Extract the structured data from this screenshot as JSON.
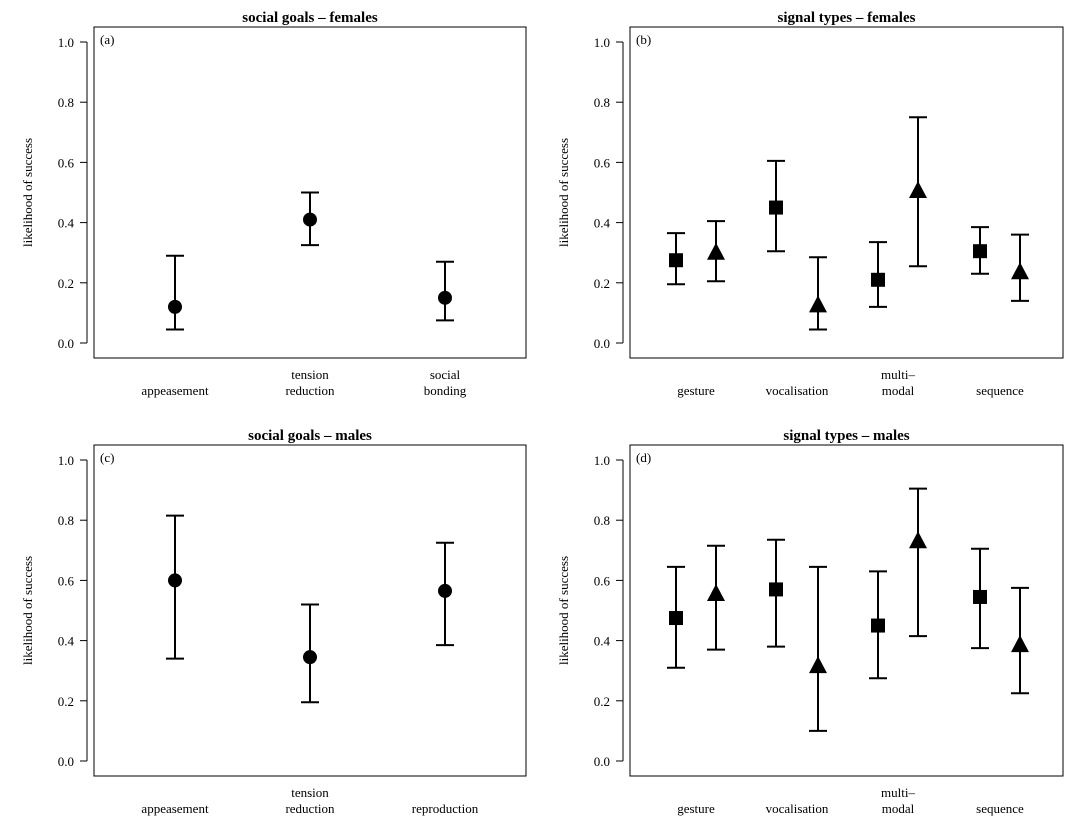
{
  "chart_data": [
    {
      "type": "scatter",
      "panel_label": "(a)",
      "title": "social goals – females",
      "xlabel": "",
      "ylabel": "likelihood of success",
      "ylim": [
        0,
        1
      ],
      "yticks": [
        "0.0",
        "0.2",
        "0.4",
        "0.6",
        "0.8",
        "1.0"
      ],
      "categories": [
        [
          "appeasement"
        ],
        [
          "tension",
          "reduction"
        ],
        [
          "social",
          "bonding"
        ]
      ],
      "series": [
        {
          "marker": "circle",
          "values": [
            0.12,
            0.41,
            0.15
          ],
          "lower": [
            0.045,
            0.325,
            0.075
          ],
          "upper": [
            0.29,
            0.5,
            0.27
          ]
        }
      ]
    },
    {
      "type": "scatter",
      "panel_label": "(b)",
      "title": "signal types – females",
      "xlabel": "",
      "ylabel": "likelihood of success",
      "ylim": [
        0,
        1
      ],
      "yticks": [
        "0.0",
        "0.2",
        "0.4",
        "0.6",
        "0.8",
        "1.0"
      ],
      "categories": [
        [
          "gesture"
        ],
        [
          "vocalisation"
        ],
        [
          "multi–",
          "modal"
        ],
        [
          "sequence"
        ]
      ],
      "series": [
        {
          "marker": "square",
          "values": [
            0.275,
            0.45,
            0.21,
            0.305
          ],
          "lower": [
            0.195,
            0.305,
            0.12,
            0.23
          ],
          "upper": [
            0.365,
            0.605,
            0.335,
            0.385
          ]
        },
        {
          "marker": "triangle",
          "values": [
            0.3,
            0.125,
            0.505,
            0.235
          ],
          "lower": [
            0.205,
            0.045,
            0.255,
            0.14
          ],
          "upper": [
            0.405,
            0.285,
            0.75,
            0.36
          ]
        }
      ]
    },
    {
      "type": "scatter",
      "panel_label": "(c)",
      "title": "social goals – males",
      "xlabel": "",
      "ylabel": "likelihood of success",
      "ylim": [
        0,
        1
      ],
      "yticks": [
        "0.0",
        "0.2",
        "0.4",
        "0.6",
        "0.8",
        "1.0"
      ],
      "categories": [
        [
          "appeasement"
        ],
        [
          "tension",
          "reduction"
        ],
        [
          "reproduction"
        ]
      ],
      "series": [
        {
          "marker": "circle",
          "values": [
            0.6,
            0.345,
            0.565
          ],
          "lower": [
            0.34,
            0.195,
            0.385
          ],
          "upper": [
            0.815,
            0.52,
            0.725
          ]
        }
      ]
    },
    {
      "type": "scatter",
      "panel_label": "(d)",
      "title": "signal types – males",
      "xlabel": "",
      "ylabel": "likelihood of success",
      "ylim": [
        0,
        1
      ],
      "yticks": [
        "0.0",
        "0.2",
        "0.4",
        "0.6",
        "0.8",
        "1.0"
      ],
      "categories": [
        [
          "gesture"
        ],
        [
          "vocalisation"
        ],
        [
          "multi–",
          "modal"
        ],
        [
          "sequence"
        ]
      ],
      "series": [
        {
          "marker": "square",
          "values": [
            0.475,
            0.57,
            0.45,
            0.545
          ],
          "lower": [
            0.31,
            0.38,
            0.275,
            0.375
          ],
          "upper": [
            0.645,
            0.735,
            0.63,
            0.705
          ]
        },
        {
          "marker": "triangle",
          "values": [
            0.555,
            0.315,
            0.73,
            0.385
          ],
          "lower": [
            0.37,
            0.1,
            0.415,
            0.225
          ],
          "upper": [
            0.715,
            0.645,
            0.905,
            0.575
          ]
        }
      ]
    }
  ]
}
